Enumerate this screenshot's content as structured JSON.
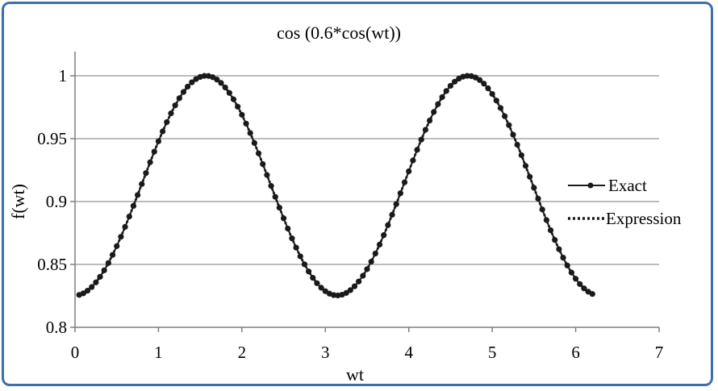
{
  "chart_data": {
    "type": "line",
    "title": "cos (0.6*cos(wt))",
    "xlabel": "wt",
    "ylabel": "f(wt)",
    "xlim": [
      0,
      7
    ],
    "ylim": [
      0.8,
      1.0
    ],
    "x_ticks": [
      0,
      1,
      2,
      3,
      4,
      5,
      6,
      7
    ],
    "y_ticks": [
      0.8,
      0.85,
      0.9,
      0.95,
      1.0
    ],
    "x_tick_labels": [
      "0",
      "1",
      "2",
      "3",
      "4",
      "5",
      "6",
      "7"
    ],
    "y_tick_labels": [
      "0.8",
      "0.85",
      "0.9",
      "0.95",
      "1"
    ],
    "grid": "horizontal",
    "legend_position": "right",
    "colors": {
      "series": "#1a1a1a",
      "grid": "#a6a6a6",
      "frame": "#3f6fa8"
    },
    "function": "cos(0.6*cos(wt))",
    "x_start": 0.05,
    "x_step": 0.05,
    "x_end": 6.2,
    "series": [
      {
        "name": "Exact",
        "style": "solid line with circle markers"
      },
      {
        "name": "Expression",
        "style": "dotted line"
      }
    ]
  }
}
